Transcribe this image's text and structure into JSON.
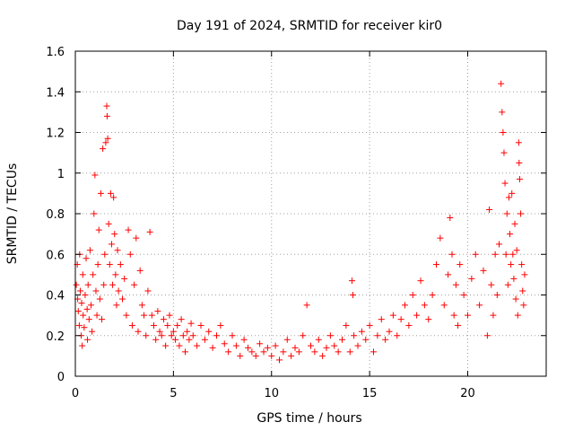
{
  "chart_data": {
    "type": "scatter",
    "title": "Day 191 of 2024, SRMTID for receiver kir0",
    "xlabel": "GPS time / hours",
    "ylabel": "SRMTID / TECUs",
    "xlim": [
      0,
      24
    ],
    "ylim": [
      0,
      1.6
    ],
    "xticks": [
      0,
      5,
      10,
      15,
      20
    ],
    "xtick_labels": [
      "0",
      "5",
      "10",
      "15",
      "20"
    ],
    "yticks": [
      0,
      0.2,
      0.4,
      0.6,
      0.8,
      1,
      1.2,
      1.4,
      1.6
    ],
    "ytick_labels": [
      "0",
      "0.2",
      "0.4",
      "0.6",
      "0.8",
      "1",
      "1.2",
      "1.4",
      "1.6"
    ],
    "grid": true,
    "marker": "+",
    "series": [
      {
        "name": "kir0",
        "color": "#ff0000",
        "points": [
          [
            0.05,
            0.45
          ],
          [
            0.1,
            0.55
          ],
          [
            0.12,
            0.38
          ],
          [
            0.15,
            0.32
          ],
          [
            0.2,
            0.25
          ],
          [
            0.22,
            0.6
          ],
          [
            0.25,
            0.42
          ],
          [
            0.3,
            0.2
          ],
          [
            0.32,
            0.36
          ],
          [
            0.35,
            0.15
          ],
          [
            0.38,
            0.5
          ],
          [
            0.4,
            0.3
          ],
          [
            0.45,
            0.24
          ],
          [
            0.5,
            0.4
          ],
          [
            0.55,
            0.58
          ],
          [
            0.6,
            0.33
          ],
          [
            0.62,
            0.18
          ],
          [
            0.65,
            0.45
          ],
          [
            0.7,
            0.28
          ],
          [
            0.75,
            0.62
          ],
          [
            0.8,
            0.35
          ],
          [
            0.85,
            0.22
          ],
          [
            0.9,
            0.5
          ],
          [
            0.95,
            0.8
          ],
          [
            1.0,
            0.99
          ],
          [
            1.05,
            0.42
          ],
          [
            1.1,
            0.3
          ],
          [
            1.15,
            0.55
          ],
          [
            1.2,
            0.72
          ],
          [
            1.25,
            0.38
          ],
          [
            1.3,
            0.9
          ],
          [
            1.35,
            0.28
          ],
          [
            1.4,
            1.12
          ],
          [
            1.45,
            0.45
          ],
          [
            1.5,
            0.6
          ],
          [
            1.55,
            1.15
          ],
          [
            1.6,
            1.33
          ],
          [
            1.62,
            1.28
          ],
          [
            1.65,
            1.17
          ],
          [
            1.7,
            0.75
          ],
          [
            1.75,
            0.55
          ],
          [
            1.8,
            0.9
          ],
          [
            1.85,
            0.65
          ],
          [
            1.9,
            0.45
          ],
          [
            1.95,
            0.88
          ],
          [
            2.0,
            0.7
          ],
          [
            2.05,
            0.5
          ],
          [
            2.1,
            0.35
          ],
          [
            2.15,
            0.62
          ],
          [
            2.2,
            0.42
          ],
          [
            2.3,
            0.55
          ],
          [
            2.4,
            0.38
          ],
          [
            2.5,
            0.48
          ],
          [
            2.6,
            0.3
          ],
          [
            2.7,
            0.72
          ],
          [
            2.8,
            0.6
          ],
          [
            2.9,
            0.25
          ],
          [
            3.0,
            0.45
          ],
          [
            3.1,
            0.68
          ],
          [
            3.2,
            0.22
          ],
          [
            3.3,
            0.52
          ],
          [
            3.4,
            0.35
          ],
          [
            3.5,
            0.3
          ],
          [
            3.6,
            0.2
          ],
          [
            3.7,
            0.42
          ],
          [
            3.8,
            0.71
          ],
          [
            3.9,
            0.3
          ],
          [
            4.0,
            0.25
          ],
          [
            4.1,
            0.18
          ],
          [
            4.2,
            0.32
          ],
          [
            4.3,
            0.22
          ],
          [
            4.4,
            0.2
          ],
          [
            4.5,
            0.28
          ],
          [
            4.6,
            0.15
          ],
          [
            4.7,
            0.25
          ],
          [
            4.8,
            0.3
          ],
          [
            4.9,
            0.2
          ],
          [
            5.0,
            0.22
          ],
          [
            5.1,
            0.18
          ],
          [
            5.2,
            0.25
          ],
          [
            5.3,
            0.15
          ],
          [
            5.4,
            0.28
          ],
          [
            5.5,
            0.2
          ],
          [
            5.6,
            0.12
          ],
          [
            5.7,
            0.22
          ],
          [
            5.8,
            0.18
          ],
          [
            5.9,
            0.26
          ],
          [
            6.0,
            0.2
          ],
          [
            6.2,
            0.15
          ],
          [
            6.4,
            0.25
          ],
          [
            6.6,
            0.18
          ],
          [
            6.8,
            0.22
          ],
          [
            7.0,
            0.14
          ],
          [
            7.2,
            0.2
          ],
          [
            7.4,
            0.25
          ],
          [
            7.6,
            0.16
          ],
          [
            7.8,
            0.12
          ],
          [
            8.0,
            0.2
          ],
          [
            8.2,
            0.15
          ],
          [
            8.4,
            0.1
          ],
          [
            8.6,
            0.18
          ],
          [
            8.8,
            0.14
          ],
          [
            9.0,
            0.12
          ],
          [
            9.2,
            0.1
          ],
          [
            9.4,
            0.16
          ],
          [
            9.6,
            0.12
          ],
          [
            9.8,
            0.14
          ],
          [
            10.0,
            0.1
          ],
          [
            10.2,
            0.15
          ],
          [
            10.4,
            0.08
          ],
          [
            10.6,
            0.12
          ],
          [
            10.8,
            0.18
          ],
          [
            11.0,
            0.1
          ],
          [
            11.2,
            0.14
          ],
          [
            11.4,
            0.12
          ],
          [
            11.6,
            0.2
          ],
          [
            11.8,
            0.35
          ],
          [
            12.0,
            0.15
          ],
          [
            12.2,
            0.12
          ],
          [
            12.4,
            0.18
          ],
          [
            12.6,
            0.1
          ],
          [
            12.8,
            0.14
          ],
          [
            13.0,
            0.2
          ],
          [
            13.2,
            0.15
          ],
          [
            13.4,
            0.12
          ],
          [
            13.6,
            0.18
          ],
          [
            13.8,
            0.25
          ],
          [
            14.0,
            0.12
          ],
          [
            14.1,
            0.47
          ],
          [
            14.15,
            0.4
          ],
          [
            14.2,
            0.2
          ],
          [
            14.4,
            0.15
          ],
          [
            14.6,
            0.22
          ],
          [
            14.8,
            0.18
          ],
          [
            15.0,
            0.25
          ],
          [
            15.2,
            0.12
          ],
          [
            15.4,
            0.2
          ],
          [
            15.6,
            0.28
          ],
          [
            15.8,
            0.18
          ],
          [
            16.0,
            0.22
          ],
          [
            16.2,
            0.3
          ],
          [
            16.4,
            0.2
          ],
          [
            16.6,
            0.28
          ],
          [
            16.8,
            0.35
          ],
          [
            17.0,
            0.25
          ],
          [
            17.2,
            0.4
          ],
          [
            17.4,
            0.3
          ],
          [
            17.6,
            0.47
          ],
          [
            17.8,
            0.35
          ],
          [
            18.0,
            0.28
          ],
          [
            18.2,
            0.4
          ],
          [
            18.4,
            0.55
          ],
          [
            18.6,
            0.68
          ],
          [
            18.8,
            0.35
          ],
          [
            19.0,
            0.5
          ],
          [
            19.1,
            0.78
          ],
          [
            19.2,
            0.6
          ],
          [
            19.3,
            0.3
          ],
          [
            19.4,
            0.45
          ],
          [
            19.5,
            0.25
          ],
          [
            19.6,
            0.55
          ],
          [
            19.8,
            0.4
          ],
          [
            20.0,
            0.3
          ],
          [
            20.2,
            0.48
          ],
          [
            20.4,
            0.6
          ],
          [
            20.6,
            0.35
          ],
          [
            20.8,
            0.52
          ],
          [
            21.0,
            0.2
          ],
          [
            21.1,
            0.82
          ],
          [
            21.2,
            0.45
          ],
          [
            21.3,
            0.3
          ],
          [
            21.4,
            0.6
          ],
          [
            21.5,
            0.4
          ],
          [
            21.6,
            0.65
          ],
          [
            21.7,
            1.44
          ],
          [
            21.75,
            1.3
          ],
          [
            21.8,
            1.2
          ],
          [
            21.85,
            1.1
          ],
          [
            21.9,
            0.95
          ],
          [
            21.95,
            0.6
          ],
          [
            22.0,
            0.8
          ],
          [
            22.05,
            0.45
          ],
          [
            22.1,
            0.88
          ],
          [
            22.15,
            0.7
          ],
          [
            22.2,
            0.55
          ],
          [
            22.25,
            0.9
          ],
          [
            22.3,
            0.6
          ],
          [
            22.35,
            0.48
          ],
          [
            22.4,
            0.75
          ],
          [
            22.45,
            0.38
          ],
          [
            22.5,
            0.62
          ],
          [
            22.55,
            0.3
          ],
          [
            22.6,
            1.15
          ],
          [
            22.62,
            1.05
          ],
          [
            22.65,
            0.97
          ],
          [
            22.7,
            0.8
          ],
          [
            22.75,
            0.55
          ],
          [
            22.8,
            0.42
          ],
          [
            22.85,
            0.35
          ],
          [
            22.9,
            0.5
          ]
        ]
      }
    ]
  }
}
